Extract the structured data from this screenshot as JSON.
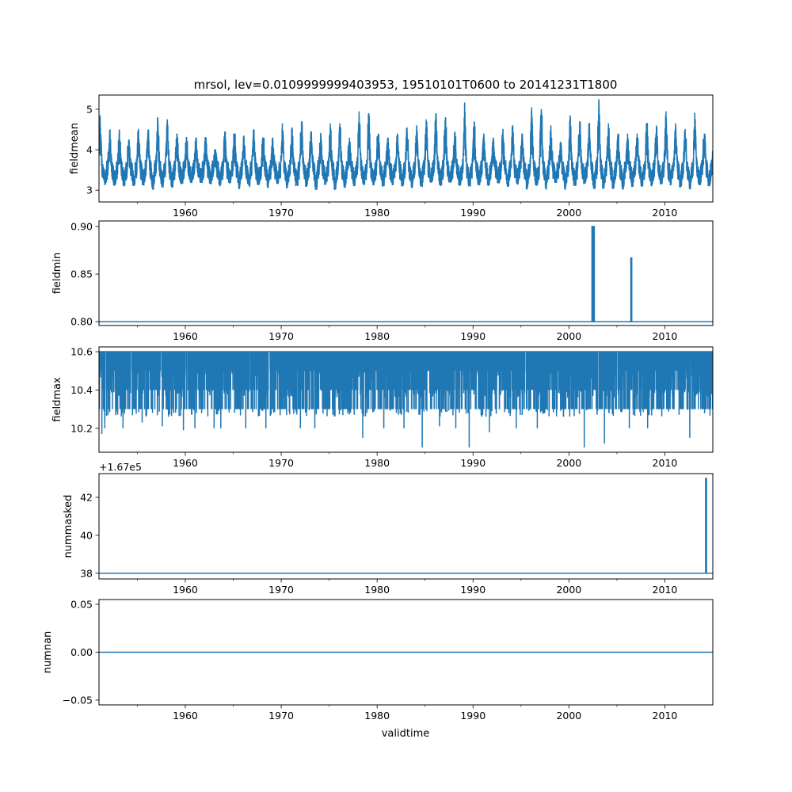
{
  "title": "mrsol, lev=0.0109999999403953, 19510101T0600 to 20141231T1800",
  "xlabel": "validtime",
  "line_color": "#1f77b4",
  "chart_data": [
    {
      "type": "line",
      "name": "fieldmean",
      "ylabel": "fieldmean",
      "xlim": [
        1951.0,
        2015.0
      ],
      "ylim": [
        2.71,
        5.35
      ],
      "yticks": [
        3,
        4,
        5
      ],
      "ytick_labels": [
        "3",
        "4",
        "5"
      ],
      "xticks": [
        1960,
        1970,
        1980,
        1990,
        2000,
        2010
      ],
      "xtick_labels": [
        "1960",
        "1970",
        "1980",
        "1990",
        "2000",
        "2010"
      ],
      "minor_xticks": [
        1955,
        1965,
        1975,
        1985,
        1995,
        2005
      ],
      "series_summary": {
        "years_start": 1951,
        "annual_max": [
          4.85,
          4.5,
          4.5,
          4.25,
          4.5,
          4.5,
          4.8,
          4.75,
          4.4,
          4.3,
          4.3,
          4.3,
          4.0,
          4.45,
          4.4,
          4.35,
          4.5,
          4.3,
          4.3,
          4.65,
          4.55,
          4.7,
          4.45,
          4.4,
          4.65,
          4.65,
          4.3,
          4.95,
          4.9,
          4.4,
          4.3,
          4.4,
          4.55,
          4.6,
          4.75,
          4.9,
          4.8,
          4.45,
          5.15,
          4.7,
          4.4,
          4.3,
          4.5,
          4.6,
          4.4,
          5.05,
          5.0,
          4.6,
          4.2,
          4.85,
          4.7,
          4.65,
          5.25,
          4.65,
          4.4,
          4.4,
          4.4,
          4.65,
          4.6,
          4.95,
          4.65,
          4.5,
          4.9,
          4.4
        ],
        "typical_min": 3.0,
        "typical_level": 3.5
      }
    },
    {
      "type": "line",
      "name": "fieldmin",
      "ylabel": "fieldmin",
      "xlim": [
        1951.0,
        2015.0
      ],
      "ylim": [
        0.796,
        0.9058
      ],
      "yticks": [
        0.8,
        0.85,
        0.9
      ],
      "ytick_labels": [
        "0.80",
        "0.85",
        "0.90"
      ],
      "xticks": [
        1960,
        1970,
        1980,
        1990,
        2000,
        2010
      ],
      "xtick_labels": [
        "1960",
        "1970",
        "1980",
        "1990",
        "2000",
        "2010"
      ],
      "minor_xticks": [
        1955,
        1965,
        1975,
        1985,
        1995,
        2005
      ],
      "baseline": 0.8,
      "spikes": [
        [
          2002.45,
          0.9
        ],
        [
          2002.6,
          0.9
        ],
        [
          2006.5,
          0.867
        ]
      ]
    },
    {
      "type": "line",
      "name": "fieldmax",
      "ylabel": "fieldmax",
      "xlim": [
        1951.0,
        2015.0
      ],
      "ylim": [
        10.075,
        10.625
      ],
      "yticks": [
        10.2,
        10.4,
        10.6
      ],
      "ytick_labels": [
        "10.2",
        "10.4",
        "10.6"
      ],
      "xticks": [
        1960,
        1970,
        1980,
        1990,
        2000,
        2010
      ],
      "xtick_labels": [
        "1960",
        "1970",
        "1980",
        "1990",
        "2000",
        "2010"
      ],
      "minor_xticks": [
        1955,
        1965,
        1975,
        1985,
        1995,
        2005
      ],
      "baseline": 10.6,
      "common_dip_levels": [
        10.5,
        10.4,
        10.3
      ],
      "dips": [
        [
          1951.3,
          10.17
        ],
        [
          1951.6,
          10.2
        ],
        [
          1953.5,
          10.2
        ],
        [
          1955.5,
          10.23
        ],
        [
          1957.6,
          10.21
        ],
        [
          1959.8,
          10.19
        ],
        [
          1961.0,
          10.2
        ],
        [
          1963.0,
          10.2
        ],
        [
          1963.7,
          10.2
        ],
        [
          1966.3,
          10.2
        ],
        [
          1968.4,
          10.2
        ],
        [
          1972.0,
          10.2
        ],
        [
          1973.5,
          10.2
        ],
        [
          1978.5,
          10.15
        ],
        [
          1980.7,
          10.2
        ],
        [
          1982.8,
          10.2
        ],
        [
          1984.7,
          10.1
        ],
        [
          1986.5,
          10.21
        ],
        [
          1988.2,
          10.2
        ],
        [
          1989.6,
          10.1
        ],
        [
          1991.7,
          10.18
        ],
        [
          1994.5,
          10.2
        ],
        [
          1996.7,
          10.2
        ],
        [
          2001.6,
          10.1
        ],
        [
          2003.7,
          10.12
        ],
        [
          2006.3,
          10.2
        ],
        [
          2008.2,
          10.2
        ],
        [
          2012.6,
          10.15
        ]
      ]
    },
    {
      "type": "line",
      "name": "nummasked",
      "ylabel": "nummasked",
      "offset_text": "+1.67e5",
      "xlim": [
        1951.0,
        2015.0
      ],
      "ylim": [
        37.7,
        43.25
      ],
      "yticks": [
        38,
        40,
        42
      ],
      "ytick_labels": [
        "38",
        "40",
        "42"
      ],
      "xticks": [
        1960,
        1970,
        1980,
        1990,
        2000,
        2010
      ],
      "xtick_labels": [
        "1960",
        "1970",
        "1980",
        "1990",
        "2000",
        "2010"
      ],
      "minor_xticks": [
        1955,
        1965,
        1975,
        1985,
        1995,
        2005
      ],
      "baseline": 38,
      "spikes": [
        [
          2014.3,
          43
        ]
      ]
    },
    {
      "type": "line",
      "name": "numnan",
      "ylabel": "numnan",
      "xlim": [
        1951.0,
        2015.0
      ],
      "ylim": [
        -0.055,
        0.055
      ],
      "yticks": [
        -0.05,
        0.0,
        0.05
      ],
      "ytick_labels": [
        "−0.05",
        "0.00",
        "0.05"
      ],
      "xticks": [
        1960,
        1970,
        1980,
        1990,
        2000,
        2010
      ],
      "xtick_labels": [
        "1960",
        "1970",
        "1980",
        "1990",
        "2000",
        "2010"
      ],
      "minor_xticks": [
        1955,
        1965,
        1975,
        1985,
        1995,
        2005
      ],
      "baseline": 0.0,
      "spikes": []
    }
  ]
}
